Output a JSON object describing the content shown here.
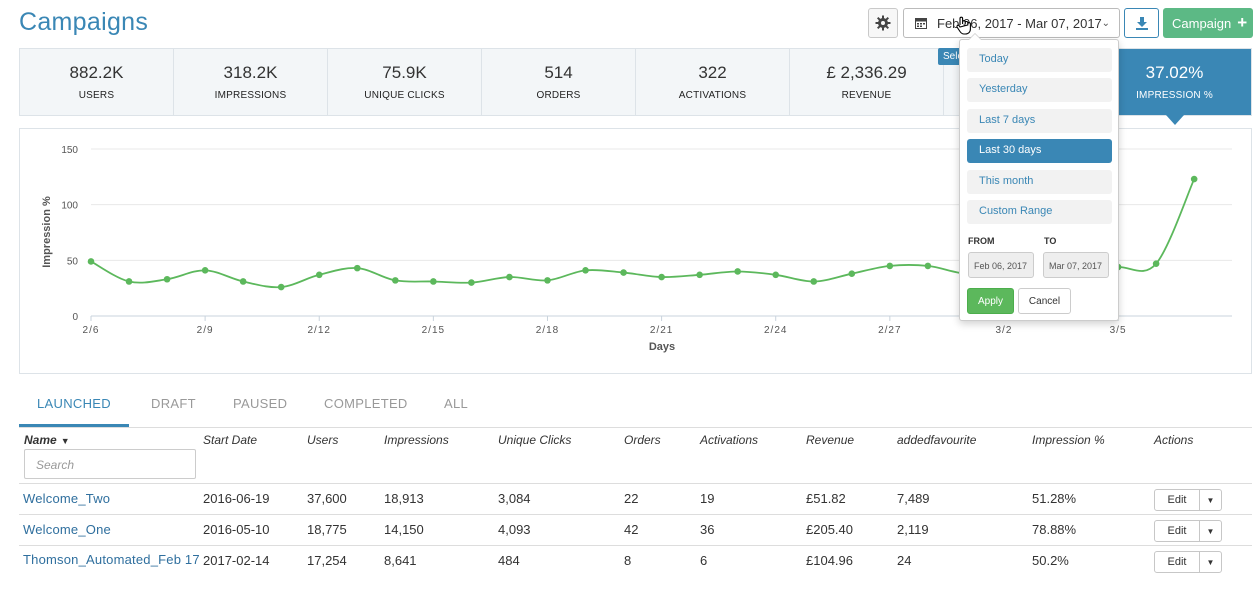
{
  "page": {
    "title": "Campaigns"
  },
  "toolbar": {
    "settings_icon": "gear-icon",
    "date_range_label": "Feb 06, 2017 - Mar 07, 2017",
    "download_icon": "download-icon",
    "campaign_button_label": "Campaign",
    "select_tip": "Sele"
  },
  "stats": [
    {
      "value": "882.2K",
      "label": "USERS"
    },
    {
      "value": "318.2K",
      "label": "IMPRESSIONS"
    },
    {
      "value": "75.9K",
      "label": "UNIQUE CLICKS"
    },
    {
      "value": "514",
      "label": "ORDERS"
    },
    {
      "value": "322",
      "label": "ACTIVATIONS"
    },
    {
      "value": "£ 2,336.29",
      "label": "REVENUE"
    },
    {
      "value": "",
      "label": ""
    },
    {
      "value": "37.02%",
      "label": "IMPRESSION %"
    }
  ],
  "chart_data": {
    "type": "line",
    "ylabel": "Impression %",
    "xlabel": "Days",
    "ylim": [
      0,
      150
    ],
    "yticks": [
      0,
      50,
      100,
      150
    ],
    "xtick_labels": [
      "2/6",
      "2/9",
      "2/12",
      "2/15",
      "2/18",
      "2/21",
      "2/24",
      "2/27",
      "3/2",
      "3/5"
    ],
    "grid": true,
    "color": "#5cb85c",
    "x": [
      "2/6",
      "2/7",
      "2/8",
      "2/9",
      "2/10",
      "2/11",
      "2/12",
      "2/13",
      "2/14",
      "2/15",
      "2/16",
      "2/17",
      "2/18",
      "2/19",
      "2/20",
      "2/21",
      "2/22",
      "2/23",
      "2/24",
      "2/25",
      "2/26",
      "2/27",
      "2/28",
      "3/1",
      "3/2",
      "3/3",
      "3/4",
      "3/5",
      "3/6",
      "3/7"
    ],
    "values": [
      49,
      31,
      33,
      41,
      31,
      26,
      37,
      43,
      32,
      31,
      30,
      35,
      32,
      41,
      39,
      35,
      37,
      40,
      37,
      31,
      38,
      45,
      45,
      38,
      40,
      43,
      44,
      44,
      47,
      123
    ]
  },
  "date_dropdown": {
    "ranges": [
      "Today",
      "Yesterday",
      "Last 7 days",
      "Last 30 days",
      "This month",
      "Custom Range"
    ],
    "active_range": "Last 30 days",
    "from_label": "FROM",
    "to_label": "TO",
    "from_value": "Feb 06, 2017",
    "to_value": "Mar 07, 2017",
    "apply_label": "Apply",
    "cancel_label": "Cancel"
  },
  "tabs": [
    "LAUNCHED",
    "DRAFT",
    "PAUSED",
    "COMPLETED",
    "ALL"
  ],
  "active_tab": "LAUNCHED",
  "table": {
    "columns": [
      "Name",
      "Start Date",
      "Users",
      "Impressions",
      "Unique Clicks",
      "Orders",
      "Activations",
      "Revenue",
      "addedfavourite",
      "Impression %",
      "Actions"
    ],
    "search_placeholder": "Search",
    "edit_label": "Edit",
    "rows": [
      [
        "Welcome_Two",
        "2016-06-19",
        "37,600",
        "18,913",
        "3,084",
        "22",
        "19",
        "£51.82",
        "7,489",
        "51.28%"
      ],
      [
        "Welcome_One",
        "2016-05-10",
        "18,775",
        "14,150",
        "4,093",
        "42",
        "36",
        "£205.40",
        "2,119",
        "78.88%"
      ],
      [
        "Thomson_Automated_Feb 17",
        "2017-02-14",
        "17,254",
        "8,641",
        "484",
        "8",
        "6",
        "£104.96",
        "24",
        "50.2%"
      ]
    ]
  }
}
